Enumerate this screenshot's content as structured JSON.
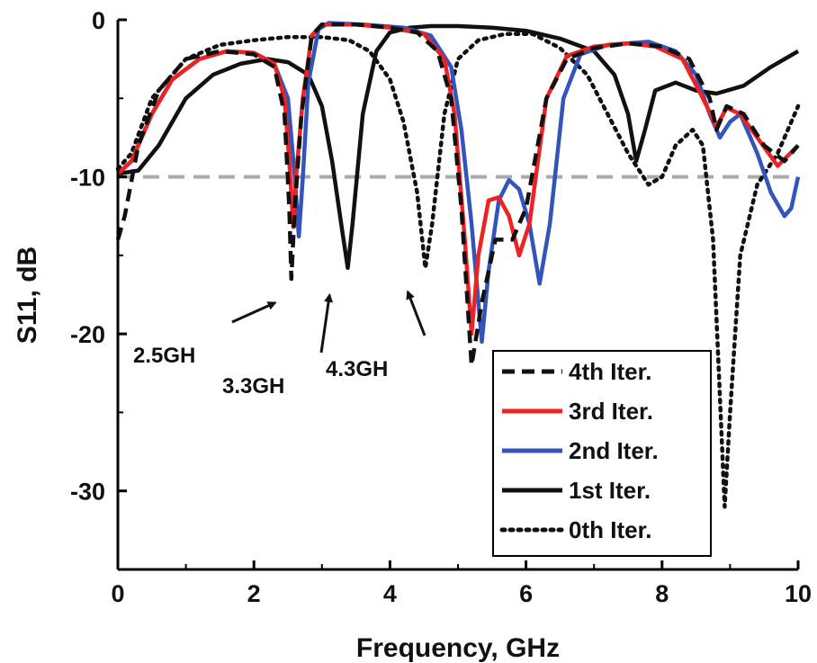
{
  "chart_data": {
    "type": "line",
    "title": "",
    "xlabel": "Frequency, GHz",
    "ylabel": "S11, dB",
    "xlim": [
      0,
      10
    ],
    "ylim": [
      -35,
      0
    ],
    "x_ticks": [
      "0",
      "2",
      "4",
      "6",
      "8",
      "10"
    ],
    "y_ticks": [
      "0",
      "-10",
      "-20",
      "-30"
    ],
    "grid": false,
    "legend_position": "bottom-right",
    "reference_line": {
      "y": -10,
      "color": "#aaaaaa",
      "style": "dashed"
    },
    "series": [
      {
        "name": "4th Iter.",
        "color": "#111111",
        "style": "dashed",
        "points": [
          [
            0,
            -14
          ],
          [
            0.1,
            -12.5
          ],
          [
            0.3,
            -8
          ],
          [
            0.6,
            -4.5
          ],
          [
            1.0,
            -2.5
          ],
          [
            1.5,
            -2
          ],
          [
            2.0,
            -2.2
          ],
          [
            2.3,
            -3
          ],
          [
            2.45,
            -6
          ],
          [
            2.52,
            -12
          ],
          [
            2.55,
            -16.5
          ],
          [
            2.6,
            -12
          ],
          [
            2.7,
            -6
          ],
          [
            2.85,
            -1
          ],
          [
            3.0,
            -0.3
          ],
          [
            3.5,
            -0.3
          ],
          [
            4.0,
            -0.5
          ],
          [
            4.4,
            -0.8
          ],
          [
            4.7,
            -2
          ],
          [
            4.9,
            -5
          ],
          [
            5.05,
            -12
          ],
          [
            5.2,
            -22
          ],
          [
            5.35,
            -18
          ],
          [
            5.55,
            -14
          ],
          [
            5.8,
            -14
          ],
          [
            6.0,
            -12
          ],
          [
            6.3,
            -5
          ],
          [
            6.6,
            -2.5
          ],
          [
            7.0,
            -1.8
          ],
          [
            7.5,
            -1.5
          ],
          [
            8.0,
            -1.7
          ],
          [
            8.4,
            -2.5
          ],
          [
            8.7,
            -5
          ],
          [
            8.8,
            -7
          ],
          [
            8.95,
            -5.5
          ],
          [
            9.2,
            -6
          ],
          [
            9.5,
            -8
          ],
          [
            9.8,
            -9
          ],
          [
            10,
            -8
          ]
        ]
      },
      {
        "name": "3rd Iter.",
        "color": "#ee2222",
        "style": "solid",
        "points": [
          [
            0,
            -9.8
          ],
          [
            0.2,
            -9
          ],
          [
            0.5,
            -6
          ],
          [
            0.8,
            -3.8
          ],
          [
            1.2,
            -2.5
          ],
          [
            1.6,
            -2
          ],
          [
            2.0,
            -2.1
          ],
          [
            2.3,
            -2.8
          ],
          [
            2.45,
            -5
          ],
          [
            2.52,
            -9
          ],
          [
            2.58,
            -13.2
          ],
          [
            2.62,
            -10
          ],
          [
            2.72,
            -5
          ],
          [
            2.85,
            -1
          ],
          [
            3.0,
            -0.3
          ],
          [
            3.5,
            -0.3
          ],
          [
            4.0,
            -0.5
          ],
          [
            4.5,
            -0.9
          ],
          [
            4.8,
            -2.5
          ],
          [
            4.95,
            -6
          ],
          [
            5.1,
            -14
          ],
          [
            5.2,
            -20
          ],
          [
            5.3,
            -15
          ],
          [
            5.45,
            -11.5
          ],
          [
            5.6,
            -11.3
          ],
          [
            5.75,
            -12.5
          ],
          [
            5.9,
            -15
          ],
          [
            6.05,
            -13
          ],
          [
            6.3,
            -5
          ],
          [
            6.6,
            -2.3
          ],
          [
            7.0,
            -1.7
          ],
          [
            7.5,
            -1.5
          ],
          [
            7.9,
            -1.7
          ],
          [
            8.3,
            -2.5
          ],
          [
            8.6,
            -5
          ],
          [
            8.8,
            -6.8
          ],
          [
            8.95,
            -5.6
          ],
          [
            9.15,
            -6
          ],
          [
            9.4,
            -7.5
          ],
          [
            9.7,
            -9.3
          ],
          [
            10,
            -8
          ]
        ]
      },
      {
        "name": "2nd Iter.",
        "color": "#3355bb",
        "style": "solid",
        "points": [
          [
            0,
            -9.8
          ],
          [
            0.2,
            -9
          ],
          [
            0.5,
            -6
          ],
          [
            0.8,
            -3.8
          ],
          [
            1.2,
            -2.5
          ],
          [
            1.6,
            -2
          ],
          [
            2.0,
            -2.1
          ],
          [
            2.3,
            -2.8
          ],
          [
            2.5,
            -5
          ],
          [
            2.6,
            -10
          ],
          [
            2.66,
            -13.8
          ],
          [
            2.72,
            -10
          ],
          [
            2.8,
            -4
          ],
          [
            2.95,
            -0.6
          ],
          [
            3.1,
            -0.2
          ],
          [
            3.6,
            -0.3
          ],
          [
            4.2,
            -0.5
          ],
          [
            4.6,
            -1
          ],
          [
            4.9,
            -3
          ],
          [
            5.05,
            -7
          ],
          [
            5.2,
            -13
          ],
          [
            5.35,
            -20.5
          ],
          [
            5.45,
            -16
          ],
          [
            5.6,
            -11.5
          ],
          [
            5.75,
            -10.2
          ],
          [
            5.9,
            -10.8
          ],
          [
            6.05,
            -13
          ],
          [
            6.2,
            -16.8
          ],
          [
            6.35,
            -13
          ],
          [
            6.55,
            -5
          ],
          [
            6.8,
            -2.2
          ],
          [
            7.2,
            -1.6
          ],
          [
            7.8,
            -1.4
          ],
          [
            8.2,
            -2
          ],
          [
            8.5,
            -3.5
          ],
          [
            8.7,
            -6
          ],
          [
            8.85,
            -7.5
          ],
          [
            9.0,
            -6.5
          ],
          [
            9.15,
            -6
          ],
          [
            9.4,
            -8.5
          ],
          [
            9.6,
            -11
          ],
          [
            9.8,
            -12.5
          ],
          [
            9.9,
            -12
          ],
          [
            10,
            -10
          ]
        ]
      },
      {
        "name": "1st Iter.",
        "color": "#111111",
        "style": "solid",
        "points": [
          [
            0,
            -9.8
          ],
          [
            0.3,
            -9.6
          ],
          [
            0.6,
            -8
          ],
          [
            1.0,
            -5
          ],
          [
            1.4,
            -3.5
          ],
          [
            1.8,
            -2.8
          ],
          [
            2.2,
            -2.5
          ],
          [
            2.5,
            -2.7
          ],
          [
            2.8,
            -3.5
          ],
          [
            3.0,
            -5.5
          ],
          [
            3.15,
            -9
          ],
          [
            3.3,
            -13.5
          ],
          [
            3.38,
            -15.8
          ],
          [
            3.45,
            -13
          ],
          [
            3.6,
            -6
          ],
          [
            3.8,
            -2
          ],
          [
            4.0,
            -0.8
          ],
          [
            4.3,
            -0.5
          ],
          [
            4.6,
            -0.4
          ],
          [
            5.0,
            -0.4
          ],
          [
            5.5,
            -0.5
          ],
          [
            6.0,
            -0.7
          ],
          [
            6.5,
            -1.2
          ],
          [
            7.0,
            -2
          ],
          [
            7.3,
            -3.5
          ],
          [
            7.5,
            -6
          ],
          [
            7.62,
            -9
          ],
          [
            7.75,
            -7
          ],
          [
            7.9,
            -4.5
          ],
          [
            8.2,
            -4
          ],
          [
            8.5,
            -4.5
          ],
          [
            8.8,
            -4.7
          ],
          [
            9.2,
            -4.2
          ],
          [
            9.6,
            -3
          ],
          [
            10,
            -2
          ]
        ]
      },
      {
        "name": "0th Iter.",
        "color": "#111111",
        "style": "dotted",
        "points": [
          [
            0,
            -9.5
          ],
          [
            0.2,
            -8.5
          ],
          [
            0.5,
            -5
          ],
          [
            1.0,
            -2.5
          ],
          [
            1.5,
            -1.6
          ],
          [
            2.0,
            -1.3
          ],
          [
            2.5,
            -1.1
          ],
          [
            3.0,
            -1.1
          ],
          [
            3.4,
            -1.3
          ],
          [
            3.7,
            -2
          ],
          [
            4.0,
            -3.8
          ],
          [
            4.2,
            -6.5
          ],
          [
            4.4,
            -11
          ],
          [
            4.52,
            -15.8
          ],
          [
            4.62,
            -13
          ],
          [
            4.8,
            -6
          ],
          [
            5.0,
            -2.5
          ],
          [
            5.3,
            -1.3
          ],
          [
            5.7,
            -0.9
          ],
          [
            6.1,
            -0.9
          ],
          [
            6.5,
            -1.8
          ],
          [
            6.9,
            -3.5
          ],
          [
            7.2,
            -6
          ],
          [
            7.5,
            -8.5
          ],
          [
            7.8,
            -10.5
          ],
          [
            8.0,
            -10
          ],
          [
            8.2,
            -8
          ],
          [
            8.45,
            -7
          ],
          [
            8.6,
            -8
          ],
          [
            8.75,
            -14
          ],
          [
            8.85,
            -24
          ],
          [
            8.92,
            -31
          ],
          [
            9.0,
            -25
          ],
          [
            9.15,
            -15
          ],
          [
            9.4,
            -10.5
          ],
          [
            9.7,
            -8.5
          ],
          [
            10,
            -5.5
          ]
        ]
      }
    ],
    "annotations": [
      {
        "text": "2.5GH",
        "x": 2.55,
        "y": -16.3
      },
      {
        "text": "3.3GH",
        "x": 3.35,
        "y": -15.8
      },
      {
        "text": "4.3GH",
        "x": 4.5,
        "y": -15.6
      }
    ]
  }
}
